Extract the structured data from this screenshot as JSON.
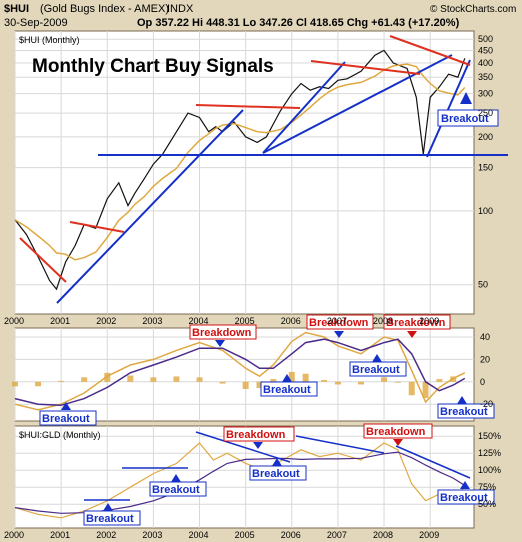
{
  "header": {
    "symbol": "$HUI",
    "index_name": "(Gold Bugs Index - AMEX)",
    "exchange": "INDX",
    "date": "30-Sep-2009",
    "ohlc": "Op 357.22  Hi 448.31  Lo 347.26  Cl 418.65  Chg +61.43 (+17.20%)",
    "watermark": "© StockCharts.com"
  },
  "chart_data": [
    {
      "type": "line",
      "panel": "price",
      "legend_label": "$HUI (Monthly)",
      "title": "Monthly Chart Buy Signals",
      "y_scale": "log",
      "ylim": [
        38,
        540
      ],
      "y_ticks": [
        50,
        100,
        150,
        200,
        250,
        300,
        350,
        400,
        450,
        500
      ],
      "x_ticks": [
        "2000",
        "2001",
        "2002",
        "2003",
        "2004",
        "2005",
        "2006",
        "2007",
        "2008",
        "2009"
      ],
      "xlim": [
        2000.0,
        2009.95
      ],
      "series": [
        {
          "x": [
            2000.0,
            2000.25,
            2000.5,
            2000.75,
            2000.9,
            2001.1,
            2001.3,
            2001.5,
            2001.75,
            2002.0,
            2002.25,
            2002.45,
            2002.6,
            2002.8,
            2003.0,
            2003.2,
            2003.5,
            2003.75,
            2004.0,
            2004.2,
            2004.35,
            2004.5,
            2004.75,
            2005.0,
            2005.25,
            2005.45,
            2005.75,
            2006.0,
            2006.2,
            2006.4,
            2006.6,
            2006.8,
            2007.0,
            2007.2,
            2007.5,
            2007.8,
            2008.0,
            2008.2,
            2008.5,
            2008.7,
            2008.85,
            2009.0,
            2009.2,
            2009.4,
            2009.6,
            2009.75
          ],
          "values": [
            92,
            80,
            65,
            52,
            48,
            62,
            72,
            88,
            85,
            112,
            130,
            105,
            118,
            135,
            155,
            170,
            210,
            250,
            240,
            210,
            220,
            210,
            230,
            200,
            190,
            200,
            255,
            300,
            330,
            310,
            320,
            315,
            340,
            345,
            370,
            430,
            450,
            400,
            380,
            290,
            170,
            290,
            320,
            360,
            350,
            418
          ]
        }
      ],
      "overlays": [
        "moving average (orange)"
      ],
      "annotations": [
        "Breakout"
      ]
    },
    {
      "type": "line",
      "panel": "macd",
      "ylim": [
        -35,
        48
      ],
      "y_ticks": [
        -20,
        0,
        20,
        40
      ],
      "series": [
        {
          "x": [
            2000.0,
            2000.5,
            2001.0,
            2001.5,
            2002.0,
            2002.5,
            2003.0,
            2003.5,
            2004.0,
            2004.5,
            2005.0,
            2005.3,
            2005.6,
            2006.0,
            2006.3,
            2006.7,
            2007.0,
            2007.5,
            2008.0,
            2008.3,
            2008.6,
            2008.9,
            2009.2,
            2009.5,
            2009.75
          ],
          "values": [
            -20,
            -25,
            -20,
            -10,
            5,
            15,
            20,
            28,
            35,
            28,
            12,
            5,
            15,
            36,
            44,
            40,
            32,
            25,
            40,
            37,
            10,
            -18,
            -5,
            3,
            8
          ]
        },
        {
          "x": [
            2000.0,
            2000.5,
            2001.0,
            2001.5,
            2002.0,
            2002.5,
            2003.0,
            2003.5,
            2004.0,
            2004.5,
            2005.0,
            2005.3,
            2005.6,
            2006.0,
            2006.3,
            2006.7,
            2007.0,
            2007.5,
            2008.0,
            2008.3,
            2008.6,
            2008.9,
            2009.2,
            2009.5,
            2009.75
          ],
          "values": [
            -15,
            -20,
            -21,
            -15,
            -5,
            8,
            15,
            22,
            30,
            30,
            20,
            12,
            12,
            25,
            35,
            38,
            35,
            28,
            35,
            38,
            25,
            0,
            -8,
            -3,
            3
          ]
        }
      ],
      "annotations": [
        "Breakdown",
        "Breakdown",
        "Breakdown",
        "Breakout",
        "Breakout",
        "Breakout",
        "Breakout"
      ]
    },
    {
      "type": "line",
      "panel": "ratio",
      "legend_label": "$HUI:GLD (Monthly)",
      "ylim": [
        15,
        165
      ],
      "y_ticks": [
        50,
        75,
        100,
        125,
        150
      ],
      "y_tick_labels": [
        "50%",
        "75%",
        "100%",
        "125%",
        "150%"
      ],
      "series": [
        {
          "x": [
            2000.0,
            2000.5,
            2001.0,
            2001.5,
            2002.0,
            2002.5,
            2003.0,
            2003.5,
            2004.0,
            2004.3,
            2004.6,
            2005.0,
            2005.4,
            2005.8,
            2006.2,
            2006.6,
            2007.0,
            2007.5,
            2008.0,
            2008.3,
            2008.6,
            2008.9,
            2009.2,
            2009.5,
            2009.75
          ],
          "values": [
            45,
            35,
            30,
            40,
            55,
            75,
            95,
            110,
            140,
            115,
            125,
            110,
            100,
            115,
            130,
            120,
            125,
            115,
            140,
            130,
            80,
            55,
            65,
            60,
            75
          ]
        }
      ],
      "annotations": [
        "Breakdown",
        "Breakdown",
        "Breakout",
        "Breakout",
        "Breakout",
        "Breakout"
      ]
    }
  ],
  "colors": {
    "background": "#e2d7bb",
    "panel": "#ffffff",
    "trendline_blue": "#1530c8",
    "trendline_red": "#e03020",
    "ma_orange": "#e0a840",
    "macd_purple": "#4a2a8a",
    "breakout_blue": "#1530c8",
    "breakdown_red": "#d01010"
  }
}
